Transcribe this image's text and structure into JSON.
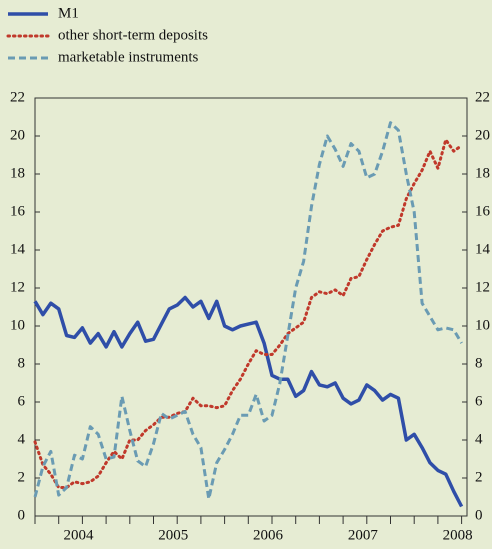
{
  "chart_data": {
    "type": "line",
    "categories": [
      null,
      null,
      null,
      null,
      null,
      null,
      null,
      null,
      null,
      null,
      null,
      null,
      null,
      null,
      null,
      null,
      null,
      null,
      null,
      null,
      null,
      null,
      null,
      null,
      null,
      null,
      null,
      null,
      null,
      null,
      null,
      null,
      null,
      null,
      null,
      null,
      null,
      null,
      null,
      null,
      null,
      null,
      null,
      null,
      null,
      null,
      null,
      null,
      null,
      null,
      null,
      null,
      null,
      null,
      null
    ],
    "series": [
      {
        "name": "M1",
        "color": "#2f4ea8",
        "dash": "solid",
        "values": [
          11.3,
          10.6,
          11.2,
          10.9,
          9.5,
          9.4,
          9.9,
          9.1,
          9.6,
          8.9,
          9.7,
          8.9,
          9.6,
          10.2,
          9.2,
          9.3,
          10.1,
          10.9,
          11.1,
          11.5,
          11.0,
          11.3,
          10.4,
          11.3,
          10.0,
          9.8,
          10.0,
          10.1,
          10.2,
          9.1,
          7.4,
          7.2,
          7.2,
          6.3,
          6.6,
          7.6,
          6.9,
          6.8,
          7.0,
          6.2,
          5.9,
          6.1,
          6.9,
          6.6,
          6.1,
          6.4,
          6.2,
          4.0,
          4.3,
          3.6,
          2.8,
          2.4,
          2.2,
          1.3,
          0.5
        ]
      },
      {
        "name": "other short-term deposits",
        "color": "#c0392b",
        "dash": "dotted",
        "values": [
          3.9,
          2.7,
          2.2,
          1.5,
          1.5,
          1.8,
          1.7,
          1.8,
          2.1,
          2.8,
          3.4,
          3.0,
          4.0,
          4.0,
          4.5,
          4.8,
          5.2,
          5.2,
          5.4,
          5.5,
          6.2,
          5.8,
          5.8,
          5.7,
          5.8,
          6.6,
          7.2,
          8.0,
          8.7,
          8.5,
          8.5,
          9.0,
          9.6,
          9.9,
          10.2,
          11.5,
          11.8,
          11.7,
          11.9,
          11.6,
          12.5,
          12.6,
          13.5,
          14.3,
          15.0,
          15.2,
          15.3,
          16.7,
          17.5,
          18.2,
          19.2,
          18.3,
          19.8,
          19.2,
          19.5
        ]
      },
      {
        "name": "marketable instruments",
        "color": "#6a9bb3",
        "dash": "dashed",
        "values": [
          1.0,
          2.6,
          3.4,
          1.1,
          1.5,
          3.2,
          3.0,
          4.7,
          4.3,
          3.0,
          3.1,
          6.3,
          4.5,
          2.9,
          2.6,
          3.8,
          5.4,
          5.1,
          5.3,
          5.5,
          4.3,
          3.6,
          0.9,
          2.8,
          3.5,
          4.3,
          5.3,
          5.3,
          6.4,
          5.0,
          5.3,
          7.0,
          9.5,
          12.0,
          13.4,
          16.3,
          18.5,
          20.0,
          19.3,
          18.4,
          19.6,
          19.2,
          17.8,
          18.0,
          19.2,
          20.7,
          20.3,
          18.0,
          16.0,
          11.2,
          10.5,
          9.8,
          9.9,
          9.8,
          9.1
        ]
      }
    ],
    "xticks": [
      {
        "value": 5.5,
        "label": "2004"
      },
      {
        "value": 17.5,
        "label": "2005"
      },
      {
        "value": 29.5,
        "label": "2006"
      },
      {
        "value": 41.5,
        "label": "2007"
      },
      {
        "value": 53.5,
        "label": "2008"
      }
    ],
    "ylim": [
      0,
      22
    ],
    "yticks": [
      0,
      2,
      4,
      6,
      8,
      10,
      12,
      14,
      16,
      18,
      20,
      22
    ],
    "y2lim": [
      0,
      22
    ],
    "y2ticks": [
      0,
      2,
      4,
      6,
      8,
      10,
      12,
      14,
      16,
      18,
      20,
      22
    ]
  }
}
